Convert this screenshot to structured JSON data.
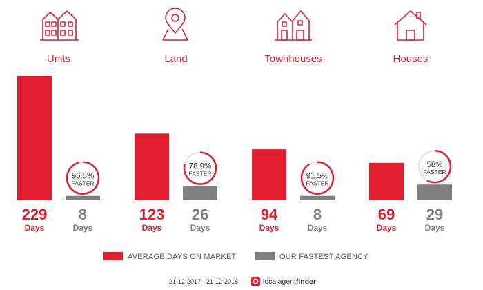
{
  "colors": {
    "accent": "#e11d2e",
    "agency": "#808080",
    "ring_bg": "#e6e6e6"
  },
  "chart_data": {
    "type": "bar",
    "categories": [
      "Units",
      "Land",
      "Townhouses",
      "Houses"
    ],
    "icons": [
      "units-icon",
      "land-pin-icon",
      "townhouses-icon",
      "house-icon"
    ],
    "series": [
      {
        "name": "AVERAGE DAYS ON MARKET",
        "values": [
          229,
          123,
          94,
          69
        ]
      },
      {
        "name": "OUR FASTEST AGENCY",
        "values": [
          8,
          26,
          8,
          29
        ]
      }
    ],
    "value_unit": "Days",
    "faster_percent": [
      "96.5%",
      "78.9%",
      "91.5%",
      "58%"
    ],
    "faster_fraction": [
      0.965,
      0.789,
      0.915,
      0.58
    ],
    "faster_label": "FASTER",
    "ylim": [
      0,
      229
    ],
    "legend_placement": "bottom-center",
    "grid": false
  },
  "footer": {
    "date_range": "21-12-2017 - 21-12-2018",
    "brand_main": "localagent",
    "brand_bold": "finder",
    "logo_icon": "localagentfinder-logo-icon"
  }
}
